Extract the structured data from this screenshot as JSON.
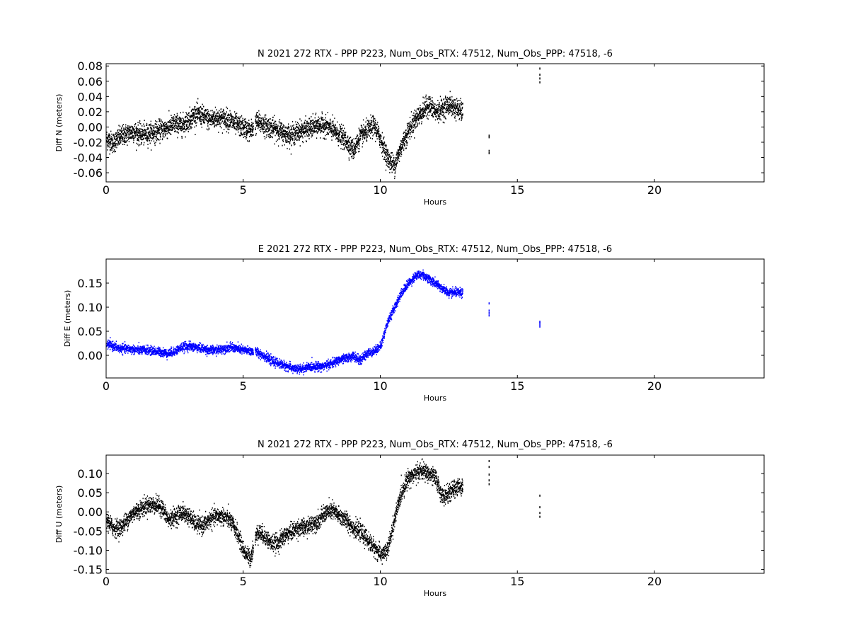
{
  "chart_data": [
    {
      "type": "scatter",
      "title": "N 2021 272 RTX - PPP  P223, Num_Obs_RTX: 47512, Num_Obs_PPP: 47518, -6",
      "xlabel": "Hours",
      "ylabel": "Diff N (meters)",
      "xlim": [
        0,
        24
      ],
      "ylim": [
        -0.072,
        0.083
      ],
      "xticks": [
        "0",
        "5",
        "10",
        "15",
        "20"
      ],
      "yticks": [
        "-0.06",
        "-0.04",
        "-0.02",
        "0.00",
        "0.02",
        "0.04",
        "0.06",
        "0.08"
      ],
      "color": "#000000",
      "grid": false,
      "series_trend": {
        "x": [
          0,
          0.25,
          0.5,
          0.75,
          1,
          1.25,
          1.5,
          1.75,
          2,
          2.25,
          2.5,
          2.75,
          3,
          3.25,
          3.5,
          3.75,
          4,
          4.25,
          4.5,
          4.75,
          5,
          5.25,
          5.5,
          5.75,
          6,
          6.25,
          6.5,
          6.75,
          7,
          7.25,
          7.5,
          7.75,
          8,
          8.25,
          8.5,
          8.75,
          9,
          9.25,
          9.5,
          9.75,
          10,
          10.25,
          10.5,
          10.75,
          11,
          11.25,
          11.5,
          11.75,
          12,
          12.25,
          12.5,
          12.75,
          13
        ],
        "y": [
          -0.015,
          -0.02,
          -0.012,
          -0.008,
          -0.005,
          -0.01,
          -0.008,
          -0.006,
          -0.003,
          0.0,
          0.005,
          0.003,
          0.01,
          0.018,
          0.015,
          0.01,
          0.013,
          0.012,
          0.01,
          0.003,
          0.0,
          -0.005,
          0.008,
          0.003,
          0.0,
          -0.003,
          -0.008,
          -0.01,
          -0.005,
          -0.003,
          0.0,
          0.003,
          0.002,
          -0.003,
          -0.01,
          -0.018,
          -0.03,
          -0.012,
          -0.005,
          0.003,
          -0.015,
          -0.04,
          -0.05,
          -0.025,
          -0.005,
          0.01,
          0.02,
          0.03,
          0.02,
          0.025,
          0.03,
          0.025,
          0.02
        ],
        "spread": 0.012
      },
      "outlier_points": [
        {
          "x": 13.95,
          "y": -0.01
        },
        {
          "x": 13.95,
          "y": -0.012
        },
        {
          "x": 13.95,
          "y": -0.03
        },
        {
          "x": 13.95,
          "y": -0.033
        },
        {
          "x": 15.8,
          "y": 0.06
        },
        {
          "x": 15.8,
          "y": 0.065
        },
        {
          "x": 15.8,
          "y": 0.07
        },
        {
          "x": 15.8,
          "y": 0.078
        }
      ]
    },
    {
      "type": "scatter",
      "title": "E 2021 272 RTX - PPP  P223, Num_Obs_RTX: 47512, Num_Obs_PPP: 47518, -6",
      "xlabel": "Hours",
      "ylabel": "Diff E (meters)",
      "xlim": [
        0,
        24
      ],
      "ylim": [
        -0.047,
        0.2
      ],
      "xticks": [
        "0",
        "5",
        "10",
        "15",
        "20"
      ],
      "yticks": [
        "0.00",
        "0.05",
        "0.10",
        "0.15"
      ],
      "color": "#0000ff",
      "grid": false,
      "series_trend": {
        "x": [
          0,
          0.25,
          0.5,
          0.75,
          1,
          1.25,
          1.5,
          1.75,
          2,
          2.25,
          2.5,
          2.75,
          3,
          3.25,
          3.5,
          3.75,
          4,
          4.25,
          4.5,
          4.75,
          5,
          5.25,
          5.5,
          5.75,
          6,
          6.25,
          6.5,
          6.75,
          7,
          7.25,
          7.5,
          7.75,
          8,
          8.25,
          8.5,
          8.75,
          9,
          9.25,
          9.5,
          9.75,
          10,
          10.25,
          10.5,
          10.75,
          11,
          11.25,
          11.5,
          11.75,
          12,
          12.25,
          12.5,
          12.75,
          13
        ],
        "y": [
          0.025,
          0.02,
          0.015,
          0.015,
          0.013,
          0.012,
          0.012,
          0.01,
          0.008,
          0.005,
          0.01,
          0.018,
          0.02,
          0.018,
          0.015,
          0.012,
          0.012,
          0.015,
          0.018,
          0.015,
          0.012,
          0.01,
          0.008,
          0.0,
          -0.01,
          -0.015,
          -0.02,
          -0.025,
          -0.028,
          -0.025,
          -0.022,
          -0.022,
          -0.02,
          -0.015,
          -0.008,
          -0.005,
          0.0,
          -0.01,
          0.005,
          0.01,
          0.02,
          0.07,
          0.1,
          0.13,
          0.15,
          0.165,
          0.17,
          0.16,
          0.15,
          0.14,
          0.13,
          0.132,
          0.13
        ],
        "spread": 0.008
      },
      "outlier_points": [
        {
          "x": 13.95,
          "y": 0.085
        },
        {
          "x": 13.95,
          "y": 0.09
        },
        {
          "x": 13.95,
          "y": 0.095
        },
        {
          "x": 13.95,
          "y": 0.11
        },
        {
          "x": 15.8,
          "y": 0.062
        },
        {
          "x": 15.8,
          "y": 0.066
        },
        {
          "x": 15.8,
          "y": 0.07
        },
        {
          "x": 15.8,
          "y": 0.072
        }
      ]
    },
    {
      "type": "scatter",
      "title": "N 2021 272 RTX - PPP  P223, Num_Obs_RTX: 47512, Num_Obs_PPP: 47518, -6",
      "xlabel": "Hours",
      "ylabel": "Diff U (meters)",
      "xlim": [
        0,
        24
      ],
      "ylim": [
        -0.16,
        0.148
      ],
      "xticks": [
        "0",
        "5",
        "10",
        "15",
        "20"
      ],
      "yticks": [
        "-0.15",
        "-0.10",
        "-0.05",
        "0.00",
        "0.05",
        "0.10"
      ],
      "color": "#000000",
      "grid": false,
      "series_trend": {
        "x": [
          0,
          0.25,
          0.5,
          0.75,
          1,
          1.25,
          1.5,
          1.75,
          2,
          2.25,
          2.5,
          2.75,
          3,
          3.25,
          3.5,
          3.75,
          4,
          4.25,
          4.5,
          4.75,
          5,
          5.25,
          5.5,
          5.75,
          6,
          6.25,
          6.5,
          6.75,
          7,
          7.25,
          7.5,
          7.75,
          8,
          8.25,
          8.5,
          8.75,
          9,
          9.25,
          9.5,
          9.75,
          10,
          10.25,
          10.5,
          10.75,
          11,
          11.25,
          11.5,
          11.75,
          12,
          12.25,
          12.5,
          12.75,
          13
        ],
        "y": [
          -0.02,
          -0.04,
          -0.04,
          -0.02,
          0.0,
          0.01,
          0.02,
          0.02,
          0.015,
          -0.02,
          -0.01,
          0.0,
          -0.01,
          -0.03,
          -0.035,
          -0.02,
          -0.01,
          -0.01,
          -0.02,
          -0.05,
          -0.1,
          -0.12,
          -0.05,
          -0.06,
          -0.08,
          -0.08,
          -0.06,
          -0.05,
          -0.04,
          -0.04,
          -0.03,
          -0.02,
          0.0,
          0.005,
          -0.01,
          -0.02,
          -0.04,
          -0.05,
          -0.07,
          -0.09,
          -0.11,
          -0.1,
          -0.02,
          0.05,
          0.09,
          0.1,
          0.11,
          0.1,
          0.09,
          0.04,
          0.05,
          0.065,
          0.07
        ],
        "spread": 0.02
      },
      "outlier_points": [
        {
          "x": 13.95,
          "y": 0.075
        },
        {
          "x": 13.95,
          "y": 0.085
        },
        {
          "x": 13.95,
          "y": 0.1
        },
        {
          "x": 13.95,
          "y": 0.12
        },
        {
          "x": 13.95,
          "y": 0.135
        },
        {
          "x": 15.8,
          "y": -0.01
        },
        {
          "x": 15.8,
          "y": 0.0
        },
        {
          "x": 15.8,
          "y": 0.015
        },
        {
          "x": 15.8,
          "y": 0.045
        }
      ]
    }
  ]
}
